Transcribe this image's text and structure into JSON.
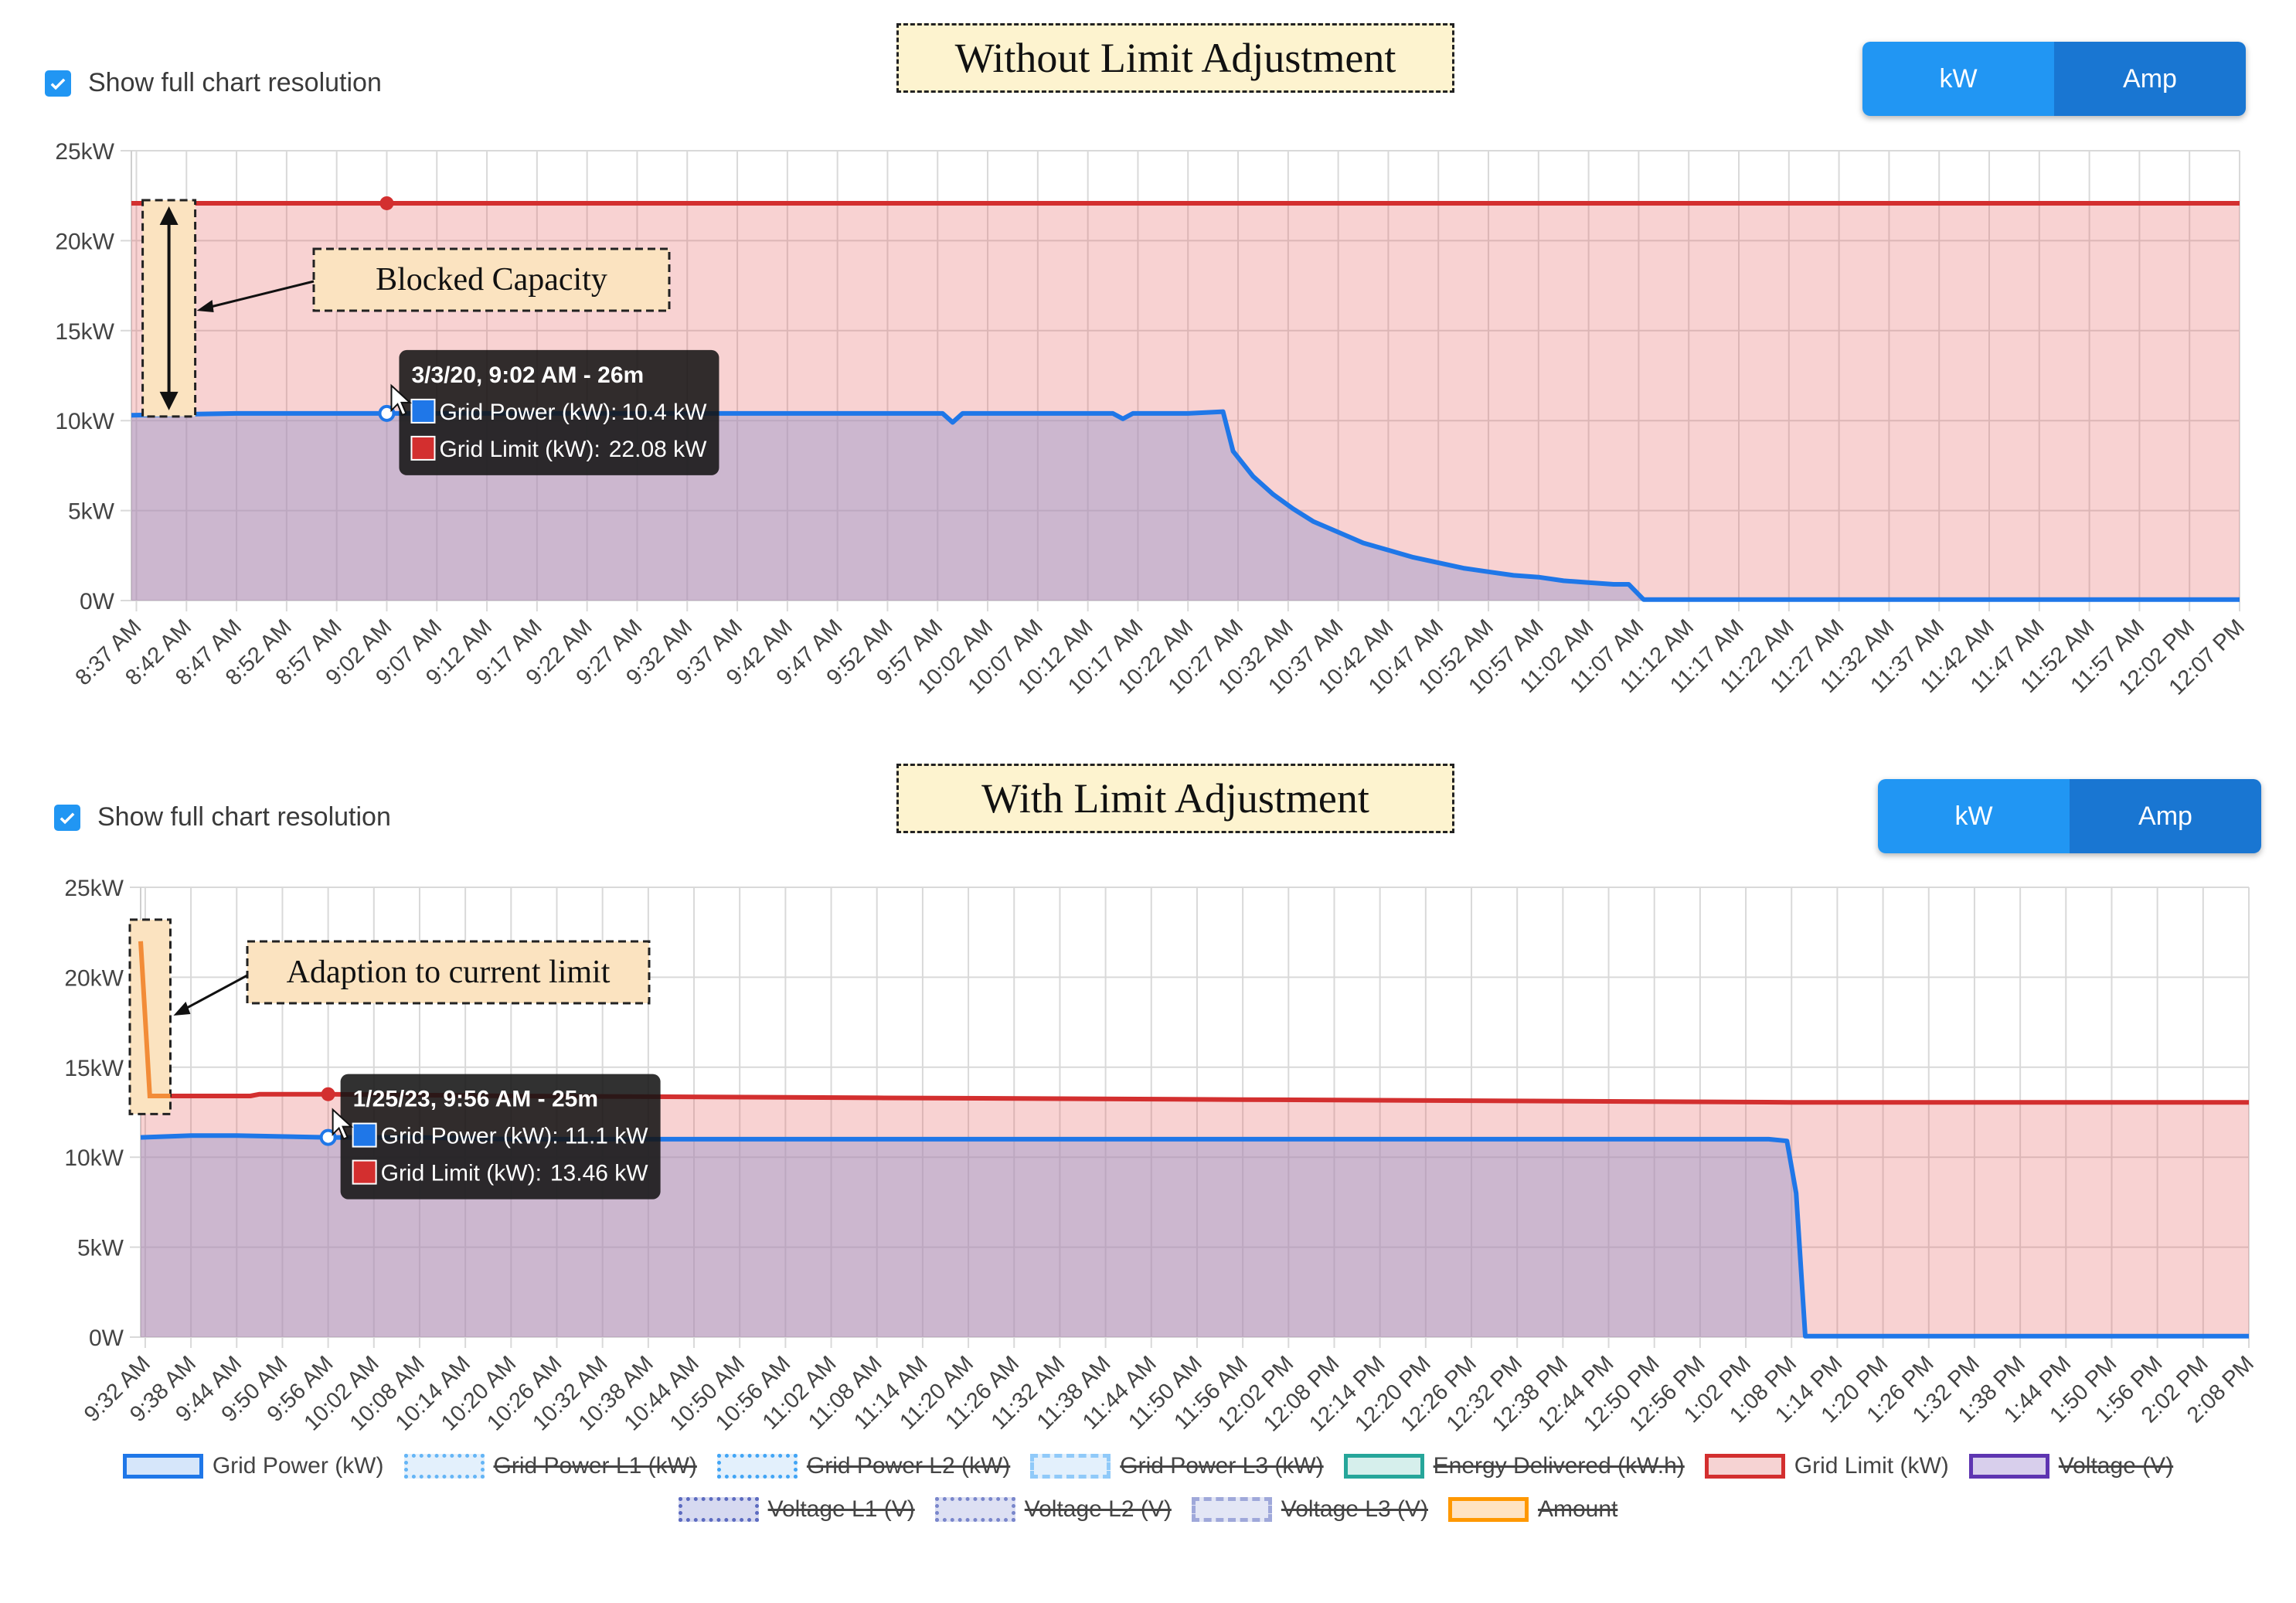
{
  "panels": [
    {
      "title": "Without Limit Adjustment",
      "checkbox_label": "Show full chart resolution",
      "toggle": {
        "kw_label": "kW",
        "amp_label": "Amp"
      },
      "annotation": "Blocked Capacity",
      "tooltip": {
        "header": "3/3/20, 9:02 AM - 26m",
        "rows": [
          {
            "label": "Grid Power (kW):",
            "value": "10.4 kW",
            "color": "#1f77e8"
          },
          {
            "label": "Grid Limit (kW):",
            "value": "22.08 kW",
            "color": "#d32f2f"
          }
        ]
      }
    },
    {
      "title": "With Limit Adjustment",
      "checkbox_label": "Show full chart resolution",
      "toggle": {
        "kw_label": "kW",
        "amp_label": "Amp"
      },
      "annotation": "Adaption to current limit",
      "tooltip": {
        "header": "1/25/23, 9:56 AM - 25m",
        "rows": [
          {
            "label": "Grid Power (kW):",
            "value": "11.1 kW",
            "color": "#1f77e8"
          },
          {
            "label": "Grid Limit (kW):",
            "value": "13.46 kW",
            "color": "#d32f2f"
          }
        ]
      }
    }
  ],
  "chart_data": [
    {
      "type": "area",
      "ylim": [
        0,
        25
      ],
      "yticks": [
        0,
        5,
        10,
        15,
        20,
        25
      ],
      "ytick_labels": [
        "0W",
        "5kW",
        "10kW",
        "15kW",
        "20kW",
        "25kW"
      ],
      "categories": [
        "8:37 AM",
        "8:42 AM",
        "8:47 AM",
        "8:52 AM",
        "8:57 AM",
        "9:02 AM",
        "9:07 AM",
        "9:12 AM",
        "9:17 AM",
        "9:22 AM",
        "9:27 AM",
        "9:32 AM",
        "9:37 AM",
        "9:42 AM",
        "9:47 AM",
        "9:52 AM",
        "9:57 AM",
        "10:02 AM",
        "10:07 AM",
        "10:12 AM",
        "10:17 AM",
        "10:22 AM",
        "10:27 AM",
        "10:32 AM",
        "10:37 AM",
        "10:42 AM",
        "10:47 AM",
        "10:52 AM",
        "10:57 AM",
        "11:02 AM",
        "11:07 AM",
        "11:12 AM",
        "11:17 AM",
        "11:22 AM",
        "11:27 AM",
        "11:32 AM",
        "11:37 AM",
        "11:42 AM",
        "11:47 AM",
        "11:52 AM",
        "11:57 AM",
        "12:02 PM",
        "12:07 PM"
      ],
      "x_range": [
        -0.1,
        42.0
      ],
      "series": [
        {
          "name": "Grid Power (kW)",
          "color": "#1f77e8",
          "points": [
            [
              -0.1,
              10.3
            ],
            [
              2,
              10.4
            ],
            [
              5,
              10.4
            ],
            [
              8,
              10.4
            ],
            [
              12,
              10.4
            ],
            [
              15,
              10.4
            ],
            [
              16.1,
              10.4
            ],
            [
              16.3,
              9.9
            ],
            [
              16.5,
              10.4
            ],
            [
              18,
              10.4
            ],
            [
              19.5,
              10.4
            ],
            [
              19.7,
              10.1
            ],
            [
              19.9,
              10.4
            ],
            [
              21,
              10.4
            ],
            [
              21.7,
              10.5
            ],
            [
              21.9,
              8.3
            ],
            [
              22.3,
              6.9
            ],
            [
              22.7,
              5.9
            ],
            [
              23.1,
              5.1
            ],
            [
              23.5,
              4.4
            ],
            [
              24,
              3.8
            ],
            [
              24.5,
              3.2
            ],
            [
              25,
              2.8
            ],
            [
              25.5,
              2.4
            ],
            [
              26,
              2.1
            ],
            [
              26.5,
              1.8
            ],
            [
              27,
              1.6
            ],
            [
              27.5,
              1.4
            ],
            [
              28,
              1.3
            ],
            [
              28.5,
              1.1
            ],
            [
              29,
              1.0
            ],
            [
              29.5,
              0.9
            ],
            [
              29.8,
              0.9
            ],
            [
              30.1,
              0.05
            ],
            [
              31,
              0.05
            ],
            [
              42.0,
              0.05
            ]
          ]
        },
        {
          "name": "Grid Limit (kW)",
          "color": "#d32f2f",
          "points": [
            [
              -0.1,
              22.08
            ],
            [
              42.0,
              22.08
            ]
          ]
        }
      ],
      "hover_index": 5
    },
    {
      "type": "area",
      "ylim": [
        0,
        25
      ],
      "yticks": [
        0,
        5,
        10,
        15,
        20,
        25
      ],
      "ytick_labels": [
        "0W",
        "5kW",
        "10kW",
        "15kW",
        "20kW",
        "25kW"
      ],
      "categories": [
        "9:32 AM",
        "9:38 AM",
        "9:44 AM",
        "9:50 AM",
        "9:56 AM",
        "10:02 AM",
        "10:08 AM",
        "10:14 AM",
        "10:20 AM",
        "10:26 AM",
        "10:32 AM",
        "10:38 AM",
        "10:44 AM",
        "10:50 AM",
        "10:56 AM",
        "11:02 AM",
        "11:08 AM",
        "11:14 AM",
        "11:20 AM",
        "11:26 AM",
        "11:32 AM",
        "11:38 AM",
        "11:44 AM",
        "11:50 AM",
        "11:56 AM",
        "12:02 PM",
        "12:08 PM",
        "12:14 PM",
        "12:20 PM",
        "12:26 PM",
        "12:32 PM",
        "12:38 PM",
        "12:44 PM",
        "12:50 PM",
        "12:56 PM",
        "1:02 PM",
        "1:08 PM",
        "1:14 PM",
        "1:20 PM",
        "1:26 PM",
        "1:32 PM",
        "1:38 PM",
        "1:44 PM",
        "1:50 PM",
        "1:56 PM",
        "2:02 PM",
        "2:08 PM"
      ],
      "x_range": [
        -0.1,
        46.0
      ],
      "series": [
        {
          "name": "Grid Power (kW)",
          "color": "#1f77e8",
          "points": [
            [
              -0.1,
              11.1
            ],
            [
              1,
              11.2
            ],
            [
              2,
              11.2
            ],
            [
              4,
              11.1
            ],
            [
              6,
              11.1
            ],
            [
              8,
              11.0
            ],
            [
              12,
              11.0
            ],
            [
              16,
              11.0
            ],
            [
              20,
              11.0
            ],
            [
              24,
              11.0
            ],
            [
              28,
              11.0
            ],
            [
              32,
              11.0
            ],
            [
              35.5,
              11.0
            ],
            [
              35.9,
              10.9
            ],
            [
              36.1,
              8.0
            ],
            [
              36.3,
              0.05
            ],
            [
              40,
              0.05
            ],
            [
              46.0,
              0.05
            ]
          ]
        },
        {
          "name": "Grid Limit (kW)",
          "color": "#d32f2f",
          "points": [
            [
              -0.1,
              22.0
            ],
            [
              0.1,
              13.4
            ],
            [
              1,
              13.4
            ],
            [
              2.3,
              13.4
            ],
            [
              2.5,
              13.5
            ],
            [
              4,
              13.5
            ],
            [
              8,
              13.4
            ],
            [
              16,
              13.3
            ],
            [
              24,
              13.2
            ],
            [
              32,
              13.1
            ],
            [
              36,
              13.05
            ],
            [
              46.0,
              13.05
            ]
          ]
        }
      ],
      "hover_index": 4
    }
  ],
  "legend": {
    "row1": [
      {
        "label": "Grid Power (kW)",
        "border": "#1f77e8",
        "fill": "#d6e6fa",
        "style": "solid",
        "hidden": false
      },
      {
        "label": "Grid Power L1 (kW)",
        "border": "#64b5f6",
        "fill": "#e3f0fc",
        "style": "dotted",
        "hidden": true
      },
      {
        "label": "Grid Power L2 (kW)",
        "border": "#42a5f5",
        "fill": "#e3f0fc",
        "style": "dotted",
        "hidden": true
      },
      {
        "label": "Grid Power L3 (kW)",
        "border": "#90caf9",
        "fill": "#e3f0fc",
        "style": "dashed",
        "hidden": true
      },
      {
        "label": "Energy Delivered (kW.h)",
        "border": "#26a69a",
        "fill": "#d6efec",
        "style": "solid",
        "hidden": true
      },
      {
        "label": "Grid Limit (kW)",
        "border": "#d32f2f",
        "fill": "#f6d3d3",
        "style": "solid",
        "hidden": false
      },
      {
        "label": "Voltage (V)",
        "border": "#5e35b1",
        "fill": "#d8cfec",
        "style": "solid",
        "hidden": true
      }
    ],
    "row2": [
      {
        "label": "Voltage L1 (V)",
        "border": "#5c6bc0",
        "fill": "#d6d9f0",
        "style": "dotted",
        "hidden": true
      },
      {
        "label": "Voltage L2 (V)",
        "border": "#7986cb",
        "fill": "#dde0f3",
        "style": "dotted",
        "hidden": true
      },
      {
        "label": "Voltage L3 (V)",
        "border": "#9fa8da",
        "fill": "#e3e6f5",
        "style": "dashed",
        "hidden": true
      },
      {
        "label": "Amount",
        "border": "#ff9800",
        "fill": "#ffe3c2",
        "style": "solid",
        "hidden": true
      }
    ]
  }
}
